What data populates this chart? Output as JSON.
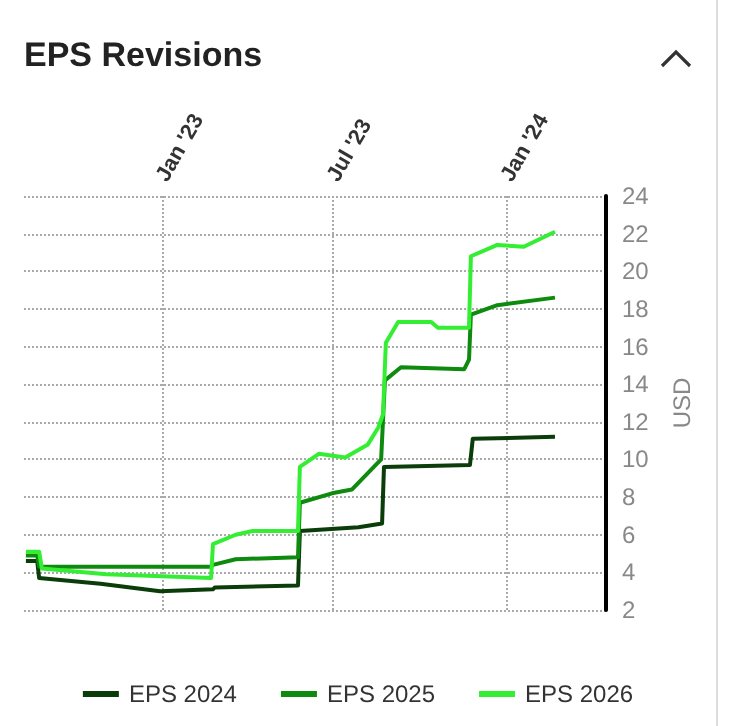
{
  "chart_data": {
    "type": "line",
    "title": "EPS Revisions",
    "ylabel": "USD",
    "xlim": [
      "2022-08-08",
      "2024-04-15"
    ],
    "xticks": [
      {
        "value": "2023-01-01",
        "label": "Jan '23"
      },
      {
        "value": "2023-07-01",
        "label": "Jul '23"
      },
      {
        "value": "2024-01-01",
        "label": "Jan '24"
      }
    ],
    "ylim": [
      2,
      24
    ],
    "yticks": [
      2,
      4,
      6,
      8,
      10,
      12,
      14,
      16,
      18,
      20,
      22,
      24
    ],
    "grid": true,
    "legend": "bottom",
    "marker": "none",
    "line_style": "solid",
    "series": [
      {
        "name": "EPS 2024",
        "color": "#0b3d0b",
        "x": [
          "2022-08-10",
          "2022-08-22",
          "2022-08-24",
          "2022-10-28",
          "2022-12-30",
          "2023-02-24",
          "2023-02-26",
          "2023-05-25",
          "2023-05-27",
          "2023-07-28",
          "2023-08-22",
          "2023-08-24",
          "2023-11-23",
          "2023-11-26",
          "2024-02-21"
        ],
        "values": [
          4.6,
          4.6,
          3.7,
          3.4,
          3.0,
          3.1,
          3.2,
          3.3,
          6.2,
          6.4,
          6.6,
          9.6,
          9.7,
          11.1,
          11.2
        ]
      },
      {
        "name": "EPS 2025",
        "color": "#0e8a0e",
        "x": [
          "2022-08-10",
          "2022-08-22",
          "2022-08-24",
          "2023-02-22",
          "2023-02-24",
          "2023-03-20",
          "2023-05-25",
          "2023-05-27",
          "2023-06-30",
          "2023-07-21",
          "2023-08-21",
          "2023-08-25",
          "2023-09-11",
          "2023-11-17",
          "2023-11-22",
          "2023-11-24",
          "2023-12-22",
          "2024-02-21"
        ],
        "values": [
          4.9,
          4.9,
          4.3,
          4.3,
          4.4,
          4.7,
          4.8,
          7.7,
          8.2,
          8.4,
          10.0,
          14.2,
          14.9,
          14.8,
          15.3,
          17.7,
          18.2,
          18.6
        ]
      },
      {
        "name": "EPS 2026",
        "color": "#33ee33",
        "x": [
          "2022-08-10",
          "2022-08-24",
          "2022-08-27",
          "2022-11-03",
          "2023-02-22",
          "2023-02-24",
          "2023-03-20",
          "2023-04-07",
          "2023-05-25",
          "2023-05-27",
          "2023-06-16",
          "2023-07-14",
          "2023-08-07",
          "2023-08-18",
          "2023-08-23",
          "2023-08-26",
          "2023-09-08",
          "2023-10-13",
          "2023-10-20",
          "2023-11-22",
          "2023-11-24",
          "2023-12-22",
          "2024-01-19",
          "2024-02-21"
        ],
        "values": [
          5.1,
          5.1,
          4.2,
          3.9,
          3.7,
          5.5,
          6.0,
          6.2,
          6.2,
          9.6,
          10.3,
          10.1,
          10.8,
          11.7,
          12.4,
          16.2,
          17.3,
          17.3,
          17.0,
          17.0,
          20.8,
          21.4,
          21.3,
          22.1
        ]
      }
    ]
  }
}
